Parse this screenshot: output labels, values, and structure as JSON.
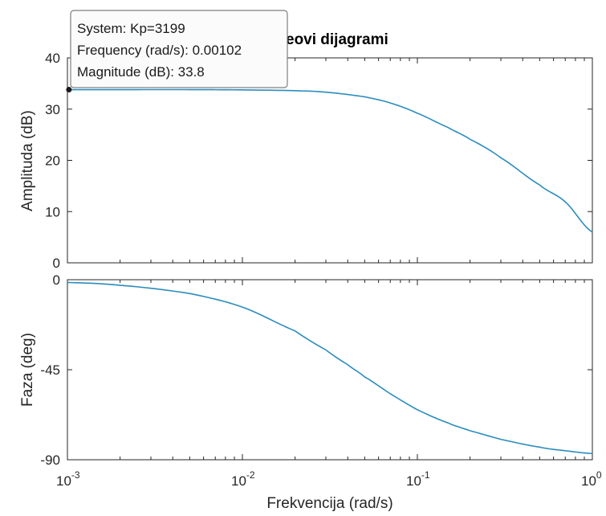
{
  "chart_data": [
    {
      "type": "line",
      "title_visible_fragment": "eovi dijagrami",
      "xlabel": "",
      "ylabel": "Amplituda (dB)",
      "xscale": "log",
      "xlim": [
        0.001,
        1
      ],
      "ylim": [
        0,
        40
      ],
      "yticks": [
        0,
        10,
        20,
        30,
        40
      ],
      "ytick_labels": [
        "0",
        "10",
        "20",
        "30",
        "40"
      ],
      "grid": false,
      "series": [
        {
          "color": "#2b8cbe",
          "x": [
            0.001,
            0.002,
            0.005,
            0.01,
            0.02,
            0.03,
            0.05,
            0.07,
            0.1,
            0.15,
            0.2,
            0.3,
            0.5,
            0.7,
            1.0
          ],
          "y": [
            33.8,
            33.8,
            33.8,
            33.75,
            33.6,
            33.3,
            32.4,
            31.2,
            29.2,
            26.4,
            24.1,
            20.5,
            15.2,
            11.9,
            6.0
          ]
        }
      ]
    },
    {
      "type": "line",
      "xlabel": "Frekvencija  (rad/s)",
      "ylabel": "Faza (deg)",
      "xscale": "log",
      "xlim": [
        0.001,
        1
      ],
      "ylim": [
        -90,
        0
      ],
      "xtick_bases": [
        "10",
        "10",
        "10",
        "10"
      ],
      "xtick_exponents": [
        "-3",
        "-2",
        "-1",
        "0"
      ],
      "xtick_values": [
        0.001,
        0.01,
        0.1,
        1
      ],
      "yticks": [
        0,
        -45,
        -90
      ],
      "ytick_labels": [
        "0",
        "-45",
        "-90"
      ],
      "grid": false,
      "series": [
        {
          "color": "#2b8cbe",
          "x": [
            0.001,
            0.002,
            0.005,
            0.01,
            0.02,
            0.03,
            0.04,
            0.05,
            0.07,
            0.1,
            0.15,
            0.2,
            0.3,
            0.5,
            0.7,
            1.0
          ],
          "y": [
            -1.4,
            -2.8,
            -6.9,
            -13.7,
            -25.6,
            -35.1,
            -42.5,
            -48.6,
            -57.0,
            -65.0,
            -71.6,
            -75.5,
            -79.8,
            -83.7,
            -85.5,
            -86.9
          ]
        }
      ]
    }
  ],
  "tooltip": {
    "line1": "System: Kp=3199",
    "line2": "Frequency (rad/s): 0.00102",
    "line3": "Magnitude (dB): 33.8",
    "x": 0.00102,
    "y": 33.8
  }
}
